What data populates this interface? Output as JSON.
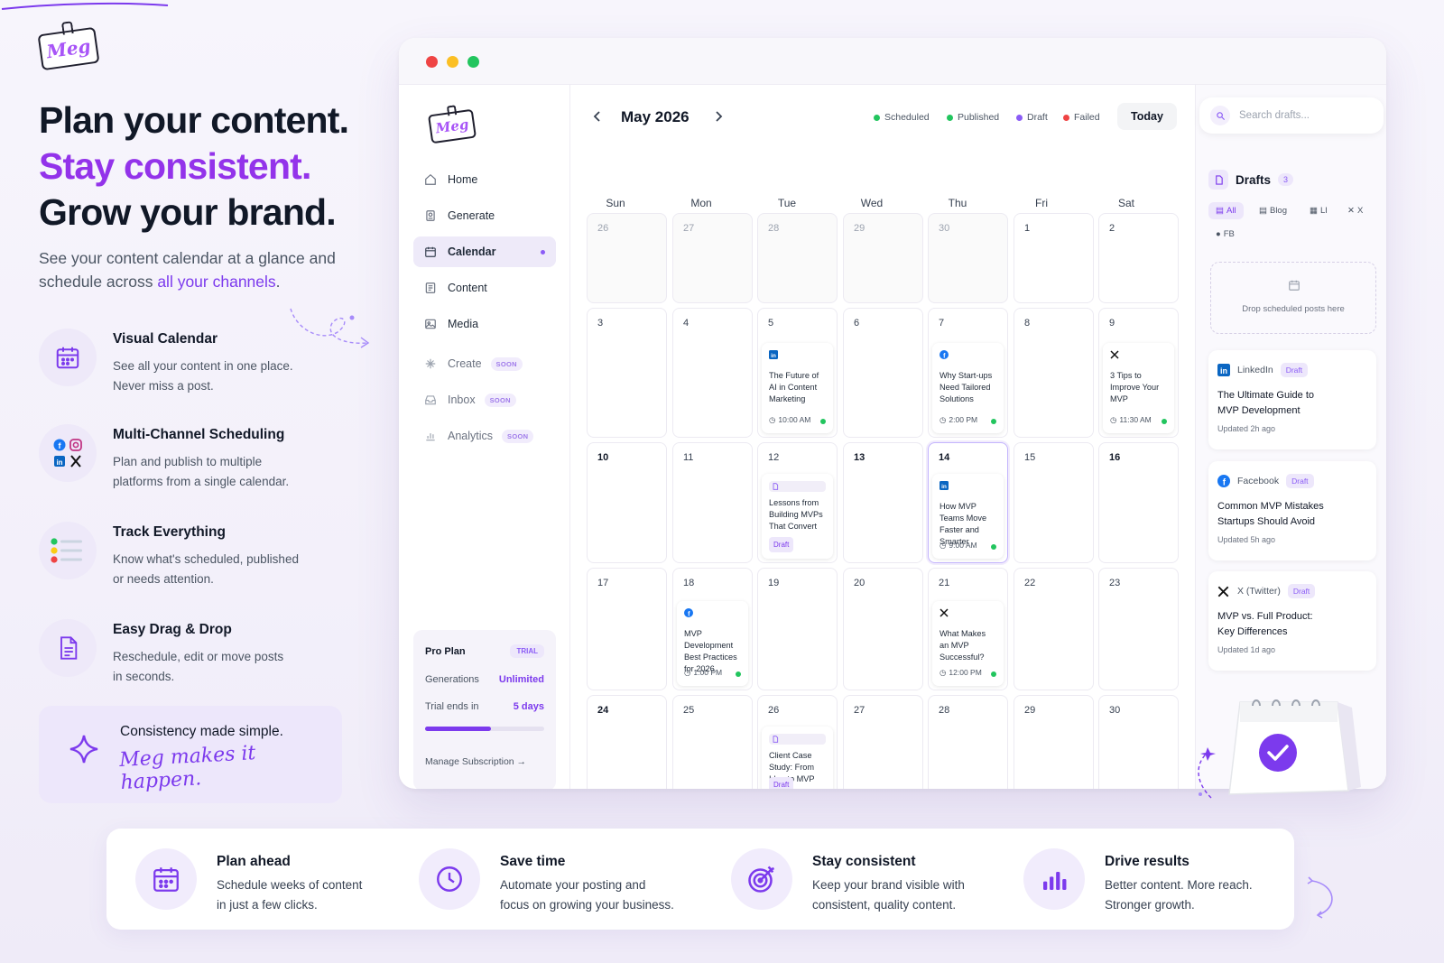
{
  "brand": {
    "logo_text": "Meg"
  },
  "hero": {
    "line1": "Plan your content.",
    "line2": "Stay consistent.",
    "line3": "Grow your brand.",
    "sub_before": "See your content calendar at a glance and schedule across ",
    "sub_link": "all your channels",
    "sub_after": "."
  },
  "features": [
    {
      "title": "Visual Calendar",
      "desc": "See all your content in one place.\nNever miss a post.",
      "icon": "calendar-icon"
    },
    {
      "title": "Multi-Channel Scheduling",
      "desc": "Plan and publish to multiple\nplatforms from a single calendar.",
      "icon": "social-channels-icon"
    },
    {
      "title": "Track Everything",
      "desc": "Know what's scheduled, published\nor needs attention.",
      "icon": "status-list-icon"
    },
    {
      "title": "Easy Drag & Drop",
      "desc": "Reschedule, edit or move posts\nin seconds.",
      "icon": "document-icon"
    }
  ],
  "consistency": {
    "title": "Consistency made simple.",
    "script": "Meg makes it happen."
  },
  "app": {
    "nav": [
      {
        "label": "Home",
        "icon": "home-icon"
      },
      {
        "label": "Generate",
        "icon": "generate-icon"
      },
      {
        "label": "Calendar",
        "icon": "calendar-icon",
        "active": true
      },
      {
        "label": "Content",
        "icon": "content-icon"
      },
      {
        "label": "Media",
        "icon": "media-icon"
      },
      {
        "label": "Create",
        "icon": "create-icon",
        "soon": "SOON"
      },
      {
        "label": "Inbox",
        "icon": "inbox-icon",
        "soon": "SOON"
      },
      {
        "label": "Analytics",
        "icon": "analytics-icon",
        "soon": "SOON"
      }
    ],
    "plan": {
      "name": "Pro Plan",
      "badge": "TRIAL",
      "generations_label": "Generations",
      "generations_value": "Unlimited",
      "trial_label": "Trial ends in",
      "trial_value": "5 days",
      "trial_progress": 0.55,
      "manage": "Manage Subscription →"
    },
    "calendar": {
      "month": "May 2026",
      "prev": "‹",
      "next": "›",
      "legend": [
        {
          "label": "Scheduled",
          "color": "#22c55e"
        },
        {
          "label": "Published",
          "color": "#22c55e"
        },
        {
          "label": "Draft",
          "color": "#8b5cf6"
        },
        {
          "label": "Failed",
          "color": "#ef4444"
        }
      ],
      "today_label": "Today",
      "weekdays": [
        "Sun",
        "Mon",
        "Tue",
        "Wed",
        "Thu",
        "Fri",
        "Sat"
      ],
      "weeks": [
        [
          "26",
          "27",
          "28",
          "29",
          "30",
          "1",
          "2"
        ],
        [
          "3",
          "4",
          "5",
          "6",
          "7",
          "8",
          "9"
        ],
        [
          "10",
          "11",
          "12",
          "13",
          "14",
          "15",
          "16"
        ],
        [
          "17",
          "18",
          "19",
          "20",
          "21",
          "22",
          "23"
        ],
        [
          "24",
          "25",
          "26",
          "27",
          "28",
          "29",
          "30"
        ]
      ],
      "posts": {
        "w1_tue": {
          "title": "The Future of AI in Content Marketing",
          "time": "10:00 AM",
          "platform": "linkedin-icon"
        },
        "w1_thu": {
          "title": "Why Start-ups Need Tailored Solutions",
          "time": "2:00 PM",
          "platform": "facebook-icon"
        },
        "w1_sat": {
          "title": "3 Tips to Improve Your MVP",
          "time": "11:30 AM",
          "platform": "x-icon"
        },
        "w2_tue": {
          "title": "Lessons from Building MVPs That Convert",
          "tag": "Draft",
          "platform": "document-icon"
        },
        "w2_thu": {
          "title": "How MVP Teams Move Faster and Smarter",
          "time": "9:00 AM",
          "platform": "linkedin-icon"
        },
        "w3_mon": {
          "title": "MVP Development Best Practices for 2026",
          "time": "1:00 PM",
          "platform": "facebook-icon"
        },
        "w3_thu": {
          "title": "What Makes an MVP Successful?",
          "time": "12:00 PM",
          "platform": "x-icon"
        },
        "w4_tue": {
          "title": "Client Case Study: From Idea to MVP",
          "tag": "Draft",
          "platform": "document-icon"
        }
      }
    },
    "drafts": {
      "search_placeholder": "Search drafts...",
      "title": "Drafts",
      "count": "3",
      "filters": [
        "All",
        "Blog",
        "LI",
        "X",
        "FB"
      ],
      "drop_text": "Drop scheduled posts here",
      "cards": [
        {
          "platform": "LinkedIn",
          "tag": "Draft",
          "title": "The Ultimate Guide to\nMVP Development",
          "updated": "Updated 2h ago",
          "icon": "linkedin-icon"
        },
        {
          "platform": "Facebook",
          "tag": "Draft",
          "title": "Common MVP Mistakes\nStartups Should Avoid",
          "updated": "Updated 5h ago",
          "icon": "facebook-icon"
        },
        {
          "platform": "X (Twitter)",
          "tag": "Draft",
          "title": "MVP vs. Full Product:\nKey Differences",
          "updated": "Updated 1d ago",
          "icon": "x-icon"
        }
      ]
    }
  },
  "benefits": [
    {
      "title": "Plan ahead",
      "desc": "Schedule weeks of content\nin just a few clicks.",
      "icon": "calendar-icon"
    },
    {
      "title": "Save time",
      "desc": "Automate your posting and\nfocus on growing your business.",
      "icon": "clock-icon"
    },
    {
      "title": "Stay consistent",
      "desc": "Keep your brand visible with\nconsistent, quality content.",
      "icon": "target-icon"
    },
    {
      "title": "Drive results",
      "desc": "Better content. More reach.\nStronger growth.",
      "icon": "bar-chart-icon"
    }
  ],
  "colors": {
    "accent": "#7c3aed",
    "accent_light": "#ede7fb",
    "scheduled": "#22c55e",
    "failed": "#ef4444"
  }
}
